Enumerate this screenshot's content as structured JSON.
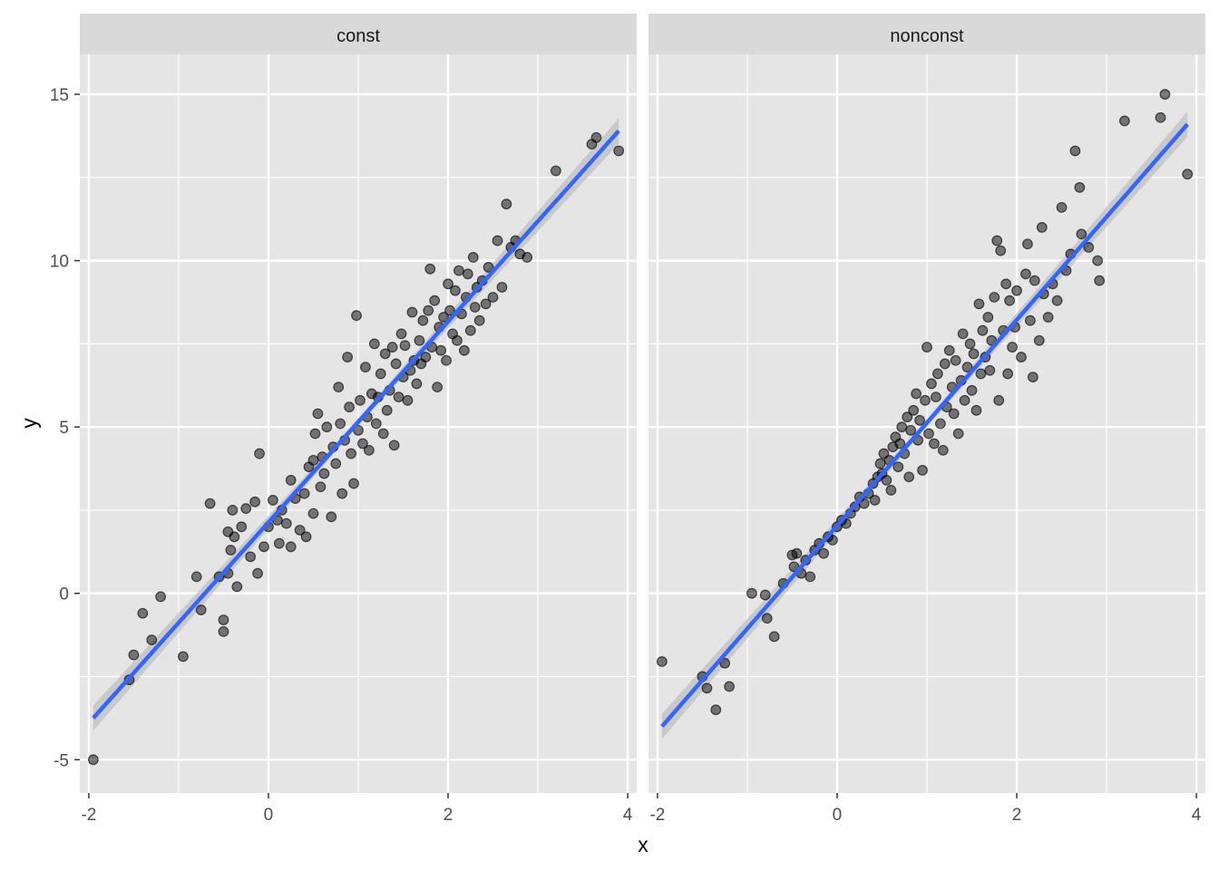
{
  "chart_data": {
    "type": "scatter",
    "xlabel": "x",
    "ylabel": "y",
    "xlim": [
      -2.1,
      4.1
    ],
    "ylim": [
      -6,
      16.2
    ],
    "x_ticks": [
      -2,
      0,
      2,
      4
    ],
    "x_tick_labels": [
      "-2",
      "0",
      "2",
      "4"
    ],
    "y_ticks": [
      -5,
      0,
      5,
      10,
      15
    ],
    "y_tick_labels": [
      "-5",
      "0",
      "5",
      "10",
      "15"
    ],
    "grid": true,
    "legend": "none",
    "colors": {
      "panel_bg": "#e5e5e5",
      "grid": "#ffffff",
      "strip_bg": "#d9d9d9",
      "points": "#000000",
      "fit_line": "#3366ff",
      "ribbon": "#bfbfbf"
    },
    "panels": [
      {
        "strip": "const",
        "fit": {
          "x": [
            -1.95,
            3.9
          ],
          "y": [
            -3.75,
            13.9
          ]
        },
        "points": [
          [
            -1.95,
            -5.0
          ],
          [
            -1.55,
            -2.6
          ],
          [
            -1.5,
            -1.85
          ],
          [
            -1.4,
            -0.6
          ],
          [
            -1.3,
            -1.4
          ],
          [
            -1.2,
            -0.1
          ],
          [
            -0.95,
            -1.9
          ],
          [
            -0.8,
            0.5
          ],
          [
            -0.75,
            -0.5
          ],
          [
            -0.65,
            2.7
          ],
          [
            -0.55,
            0.5
          ],
          [
            -0.5,
            -0.8
          ],
          [
            -0.5,
            -1.15
          ],
          [
            -0.45,
            1.85
          ],
          [
            -0.45,
            0.6
          ],
          [
            -0.42,
            1.3
          ],
          [
            -0.4,
            2.5
          ],
          [
            -0.38,
            1.7
          ],
          [
            -0.35,
            0.2
          ],
          [
            -0.3,
            2.0
          ],
          [
            -0.25,
            2.55
          ],
          [
            -0.2,
            1.1
          ],
          [
            -0.15,
            2.75
          ],
          [
            -0.12,
            0.6
          ],
          [
            -0.1,
            4.2
          ],
          [
            -0.05,
            1.4
          ],
          [
            0.0,
            2.0
          ],
          [
            0.05,
            2.8
          ],
          [
            0.1,
            2.2
          ],
          [
            0.12,
            1.5
          ],
          [
            0.15,
            2.5
          ],
          [
            0.2,
            2.1
          ],
          [
            0.25,
            3.4
          ],
          [
            0.25,
            1.4
          ],
          [
            0.3,
            2.85
          ],
          [
            0.35,
            1.9
          ],
          [
            0.4,
            3.0
          ],
          [
            0.42,
            1.7
          ],
          [
            0.45,
            3.8
          ],
          [
            0.5,
            4.0
          ],
          [
            0.5,
            2.4
          ],
          [
            0.52,
            4.8
          ],
          [
            0.55,
            5.4
          ],
          [
            0.58,
            3.2
          ],
          [
            0.6,
            4.1
          ],
          [
            0.62,
            3.6
          ],
          [
            0.65,
            5.0
          ],
          [
            0.7,
            2.3
          ],
          [
            0.72,
            4.4
          ],
          [
            0.75,
            3.9
          ],
          [
            0.78,
            6.2
          ],
          [
            0.8,
            5.1
          ],
          [
            0.82,
            3.0
          ],
          [
            0.85,
            4.6
          ],
          [
            0.88,
            7.1
          ],
          [
            0.9,
            5.6
          ],
          [
            0.92,
            4.2
          ],
          [
            0.95,
            3.3
          ],
          [
            0.98,
            8.35
          ],
          [
            1.0,
            4.9
          ],
          [
            1.02,
            5.8
          ],
          [
            1.05,
            4.5
          ],
          [
            1.08,
            6.8
          ],
          [
            1.1,
            5.3
          ],
          [
            1.12,
            4.3
          ],
          [
            1.15,
            6.0
          ],
          [
            1.18,
            7.5
          ],
          [
            1.2,
            5.1
          ],
          [
            1.22,
            5.9
          ],
          [
            1.25,
            6.6
          ],
          [
            1.28,
            4.8
          ],
          [
            1.3,
            7.2
          ],
          [
            1.32,
            5.5
          ],
          [
            1.35,
            6.1
          ],
          [
            1.38,
            7.4
          ],
          [
            1.4,
            4.45
          ],
          [
            1.42,
            6.9
          ],
          [
            1.45,
            5.9
          ],
          [
            1.48,
            7.8
          ],
          [
            1.5,
            6.5
          ],
          [
            1.52,
            7.45
          ],
          [
            1.55,
            5.8
          ],
          [
            1.58,
            6.7
          ],
          [
            1.6,
            8.45
          ],
          [
            1.62,
            7.0
          ],
          [
            1.65,
            6.3
          ],
          [
            1.68,
            7.6
          ],
          [
            1.7,
            6.9
          ],
          [
            1.72,
            8.2
          ],
          [
            1.75,
            7.1
          ],
          [
            1.78,
            8.5
          ],
          [
            1.8,
            9.75
          ],
          [
            1.82,
            7.4
          ],
          [
            1.85,
            8.8
          ],
          [
            1.88,
            6.2
          ],
          [
            1.9,
            8.0
          ],
          [
            1.92,
            7.3
          ],
          [
            1.95,
            8.3
          ],
          [
            1.98,
            7.0
          ],
          [
            2.0,
            9.3
          ],
          [
            2.02,
            8.5
          ],
          [
            2.05,
            7.8
          ],
          [
            2.08,
            9.1
          ],
          [
            2.1,
            7.6
          ],
          [
            2.12,
            9.7
          ],
          [
            2.15,
            8.4
          ],
          [
            2.18,
            7.3
          ],
          [
            2.2,
            8.9
          ],
          [
            2.22,
            9.6
          ],
          [
            2.25,
            7.9
          ],
          [
            2.28,
            10.1
          ],
          [
            2.3,
            8.6
          ],
          [
            2.32,
            9.2
          ],
          [
            2.35,
            8.2
          ],
          [
            2.38,
            9.4
          ],
          [
            2.42,
            8.7
          ],
          [
            2.45,
            9.8
          ],
          [
            2.5,
            8.9
          ],
          [
            2.55,
            10.6
          ],
          [
            2.6,
            9.2
          ],
          [
            2.65,
            11.7
          ],
          [
            2.7,
            10.4
          ],
          [
            2.75,
            10.6
          ],
          [
            2.8,
            10.2
          ],
          [
            2.88,
            10.1
          ],
          [
            3.2,
            12.7
          ],
          [
            3.6,
            13.5
          ],
          [
            3.65,
            13.7
          ],
          [
            3.9,
            13.3
          ]
        ]
      },
      {
        "strip": "nonconst",
        "fit": {
          "x": [
            -1.95,
            3.9
          ],
          "y": [
            -4.0,
            14.1
          ]
        },
        "points": [
          [
            -1.95,
            -2.05
          ],
          [
            -1.5,
            -2.5
          ],
          [
            -1.45,
            -2.85
          ],
          [
            -1.35,
            -3.5
          ],
          [
            -1.25,
            -2.1
          ],
          [
            -1.2,
            -2.8
          ],
          [
            -0.95,
            0.0
          ],
          [
            -0.8,
            -0.05
          ],
          [
            -0.78,
            -0.75
          ],
          [
            -0.7,
            -1.3
          ],
          [
            -0.6,
            0.3
          ],
          [
            -0.5,
            1.15
          ],
          [
            -0.48,
            0.8
          ],
          [
            -0.45,
            1.2
          ],
          [
            -0.4,
            0.6
          ],
          [
            -0.35,
            1.0
          ],
          [
            -0.3,
            0.5
          ],
          [
            -0.25,
            1.3
          ],
          [
            -0.2,
            1.5
          ],
          [
            -0.15,
            1.2
          ],
          [
            -0.1,
            1.7
          ],
          [
            -0.05,
            1.6
          ],
          [
            0.0,
            2.0
          ],
          [
            0.05,
            2.2
          ],
          [
            0.1,
            2.1
          ],
          [
            0.15,
            2.4
          ],
          [
            0.2,
            2.6
          ],
          [
            0.25,
            2.9
          ],
          [
            0.3,
            2.7
          ],
          [
            0.35,
            3.0
          ],
          [
            0.4,
            3.3
          ],
          [
            0.42,
            2.8
          ],
          [
            0.45,
            3.5
          ],
          [
            0.48,
            3.9
          ],
          [
            0.5,
            3.6
          ],
          [
            0.52,
            4.2
          ],
          [
            0.55,
            3.4
          ],
          [
            0.58,
            4.0
          ],
          [
            0.6,
            3.1
          ],
          [
            0.62,
            4.4
          ],
          [
            0.65,
            4.7
          ],
          [
            0.68,
            3.8
          ],
          [
            0.7,
            4.5
          ],
          [
            0.72,
            5.0
          ],
          [
            0.75,
            4.2
          ],
          [
            0.78,
            5.3
          ],
          [
            0.8,
            3.5
          ],
          [
            0.82,
            4.9
          ],
          [
            0.85,
            5.5
          ],
          [
            0.88,
            6.0
          ],
          [
            0.9,
            4.6
          ],
          [
            0.92,
            5.2
          ],
          [
            0.95,
            3.7
          ],
          [
            0.98,
            5.8
          ],
          [
            1.0,
            7.4
          ],
          [
            1.02,
            4.8
          ],
          [
            1.05,
            6.3
          ],
          [
            1.08,
            4.5
          ],
          [
            1.1,
            5.9
          ],
          [
            1.12,
            6.6
          ],
          [
            1.15,
            5.1
          ],
          [
            1.18,
            4.3
          ],
          [
            1.2,
            6.9
          ],
          [
            1.22,
            5.6
          ],
          [
            1.25,
            7.3
          ],
          [
            1.28,
            6.2
          ],
          [
            1.3,
            5.4
          ],
          [
            1.32,
            7.0
          ],
          [
            1.35,
            4.8
          ],
          [
            1.38,
            6.4
          ],
          [
            1.4,
            7.8
          ],
          [
            1.42,
            5.8
          ],
          [
            1.45,
            6.8
          ],
          [
            1.48,
            7.5
          ],
          [
            1.5,
            6.1
          ],
          [
            1.52,
            7.2
          ],
          [
            1.55,
            5.5
          ],
          [
            1.58,
            8.7
          ],
          [
            1.6,
            6.6
          ],
          [
            1.62,
            7.9
          ],
          [
            1.65,
            7.1
          ],
          [
            1.68,
            8.3
          ],
          [
            1.7,
            6.7
          ],
          [
            1.72,
            7.6
          ],
          [
            1.75,
            8.9
          ],
          [
            1.78,
            10.6
          ],
          [
            1.8,
            5.8
          ],
          [
            1.82,
            10.3
          ],
          [
            1.85,
            7.9
          ],
          [
            1.88,
            9.3
          ],
          [
            1.9,
            6.6
          ],
          [
            1.92,
            8.8
          ],
          [
            1.95,
            7.4
          ],
          [
            1.98,
            8.0
          ],
          [
            2.0,
            9.1
          ],
          [
            2.05,
            7.1
          ],
          [
            2.1,
            9.6
          ],
          [
            2.12,
            10.5
          ],
          [
            2.15,
            8.2
          ],
          [
            2.18,
            6.5
          ],
          [
            2.2,
            9.4
          ],
          [
            2.25,
            7.6
          ],
          [
            2.28,
            11.0
          ],
          [
            2.3,
            9.0
          ],
          [
            2.35,
            8.3
          ],
          [
            2.4,
            9.3
          ],
          [
            2.45,
            8.8
          ],
          [
            2.5,
            11.6
          ],
          [
            2.55,
            9.7
          ],
          [
            2.6,
            10.2
          ],
          [
            2.65,
            13.3
          ],
          [
            2.7,
            12.2
          ],
          [
            2.72,
            10.8
          ],
          [
            2.8,
            10.4
          ],
          [
            2.9,
            10.0
          ],
          [
            2.92,
            9.4
          ],
          [
            3.2,
            14.2
          ],
          [
            3.6,
            14.3
          ],
          [
            3.65,
            15.0
          ],
          [
            3.9,
            12.6
          ]
        ]
      }
    ]
  }
}
